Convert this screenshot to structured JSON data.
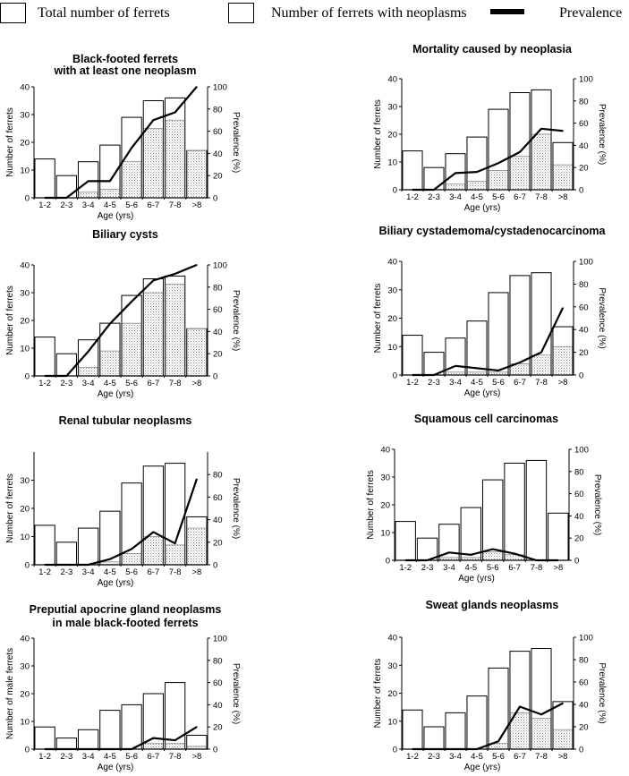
{
  "legend": {
    "total_label": "Total number of ferrets",
    "neoplasm_label": "Number of ferrets with neoplasms",
    "prevalence_label": "Prevalence"
  },
  "chart_data": [
    {
      "type": "bar",
      "title": [
        "Black-footed ferrets",
        "with at least one neoplasm"
      ],
      "xlabel": "Age (yrs)",
      "ylabel": "Number of ferrets",
      "y2label": "Prevalence (%)",
      "categories": [
        "1-2",
        "2-3",
        "3-4",
        "4-5",
        "5-6",
        "6-7",
        "7-8",
        ">8"
      ],
      "ylim": [
        0,
        40
      ],
      "yticks": [
        0,
        10,
        20,
        30,
        40
      ],
      "y2lim": [
        0,
        100
      ],
      "y2ticks": [
        0,
        20,
        40,
        60,
        80,
        100
      ],
      "series": [
        {
          "name": "Total number of ferrets",
          "values": [
            14,
            8,
            13,
            19,
            29,
            35,
            36,
            17
          ]
        },
        {
          "name": "Number of ferrets with neoplasms",
          "values": [
            0,
            0,
            2,
            3,
            13,
            25,
            28,
            17
          ]
        },
        {
          "name": "Prevalence",
          "values": [
            0,
            0,
            15,
            15,
            45,
            70,
            77,
            100
          ]
        }
      ]
    },
    {
      "type": "bar",
      "title": [
        "Mortality caused by neoplasia"
      ],
      "xlabel": "Age (yrs)",
      "ylabel": "Number of ferrets",
      "y2label": "Prevalence (%)",
      "categories": [
        "1-2",
        "2-3",
        "3-4",
        "4-5",
        "5-6",
        "6-7",
        "7-8",
        ">8"
      ],
      "ylim": [
        0,
        40
      ],
      "yticks": [
        0,
        10,
        20,
        30,
        40
      ],
      "y2lim": [
        0,
        100
      ],
      "y2ticks": [
        0,
        20,
        40,
        60,
        80,
        100
      ],
      "series": [
        {
          "name": "Total number of ferrets",
          "values": [
            14,
            8,
            13,
            19,
            29,
            35,
            36,
            17
          ]
        },
        {
          "name": "Number of ferrets with neoplasms",
          "values": [
            0,
            0,
            2,
            3,
            7,
            12,
            20,
            9
          ]
        },
        {
          "name": "Prevalence",
          "values": [
            0,
            0,
            15,
            16,
            24,
            34,
            55,
            53
          ]
        }
      ]
    },
    {
      "type": "bar",
      "title": [
        "Biliary cysts"
      ],
      "xlabel": "Age (yrs)",
      "ylabel": "Number of ferrets",
      "y2label": "Prevalence (%)",
      "categories": [
        "1-2",
        "2-3",
        "3-4",
        "4-5",
        "5-6",
        "6-7",
        "7-8",
        ">8"
      ],
      "ylim": [
        0,
        40
      ],
      "yticks": [
        0,
        10,
        20,
        30,
        40
      ],
      "y2lim": [
        0,
        100
      ],
      "y2ticks": [
        0,
        20,
        40,
        60,
        80,
        100
      ],
      "series": [
        {
          "name": "Total number of ferrets",
          "values": [
            14,
            8,
            13,
            19,
            29,
            35,
            36,
            17
          ]
        },
        {
          "name": "Number of ferrets with neoplasms",
          "values": [
            0,
            0,
            3,
            9,
            19,
            30,
            33,
            17
          ]
        },
        {
          "name": "Prevalence",
          "values": [
            0,
            0,
            22,
            47,
            67,
            86,
            92,
            100
          ]
        }
      ]
    },
    {
      "type": "bar",
      "title": [
        "Biliary cystademoma/cystadenocarcinoma"
      ],
      "xlabel": "Age (yrs)",
      "ylabel": "Number of ferrets",
      "y2label": "Prevalence (%)",
      "categories": [
        "1-2",
        "2-3",
        "3-4",
        "4-5",
        "5-6",
        "6-7",
        "7-8",
        ">8"
      ],
      "ylim": [
        0,
        40
      ],
      "yticks": [
        0,
        10,
        20,
        30,
        40
      ],
      "y2lim": [
        0,
        100
      ],
      "y2ticks": [
        0,
        20,
        40,
        60,
        80,
        100
      ],
      "series": [
        {
          "name": "Total number of ferrets",
          "values": [
            14,
            8,
            13,
            19,
            29,
            35,
            36,
            17
          ]
        },
        {
          "name": "Number of ferrets with neoplasms",
          "values": [
            0,
            0,
            1,
            1,
            1,
            4,
            7,
            10
          ]
        },
        {
          "name": "Prevalence",
          "values": [
            0,
            0,
            8,
            6,
            4,
            11,
            20,
            59
          ]
        }
      ]
    },
    {
      "type": "bar",
      "title": [
        "Renal tubular neoplasms"
      ],
      "xlabel": "Age (yrs)",
      "ylabel": "Number of ferrets",
      "y2label": "Prevalence (%)",
      "categories": [
        "1-2",
        "2-3",
        "3-4",
        "4-5",
        "5-6",
        "6-7",
        "7-8",
        ">8"
      ],
      "ylim": [
        0,
        40
      ],
      "yticks": [
        0,
        10,
        20,
        30
      ],
      "y2lim": [
        0,
        100
      ],
      "y2ticks": [
        0,
        20,
        40,
        60,
        80
      ],
      "series": [
        {
          "name": "Total number of ferrets",
          "values": [
            14,
            8,
            13,
            19,
            29,
            35,
            36,
            17
          ]
        },
        {
          "name": "Number of ferrets with neoplasms",
          "values": [
            0,
            0,
            0,
            1,
            4,
            10,
            7,
            13
          ]
        },
        {
          "name": "Prevalence",
          "values": [
            0,
            0,
            0,
            5,
            14,
            29,
            19,
            76
          ]
        }
      ]
    },
    {
      "type": "bar",
      "title": [
        "Squamous cell carcinomas"
      ],
      "xlabel": "Age (yrs)",
      "ylabel": "Number of ferrets",
      "y2label": "Prevalence (%)",
      "categories": [
        "1-2",
        "2-3",
        "3-4",
        "4-5",
        "5-6",
        "6-7",
        "7-8",
        ">8"
      ],
      "ylim": [
        0,
        40
      ],
      "yticks": [
        0,
        10,
        20,
        30,
        40
      ],
      "y2lim": [
        0,
        100
      ],
      "y2ticks": [
        0,
        20,
        40,
        60,
        80,
        100
      ],
      "series": [
        {
          "name": "Total number of ferrets",
          "values": [
            14,
            8,
            13,
            19,
            29,
            35,
            36,
            17
          ]
        },
        {
          "name": "Number of ferrets with neoplasms",
          "values": [
            0,
            0,
            1,
            1,
            3,
            2,
            0,
            0
          ]
        },
        {
          "name": "Prevalence",
          "values": [
            0,
            0,
            7,
            5,
            10,
            6,
            0,
            0
          ]
        }
      ]
    },
    {
      "type": "bar",
      "title": [
        "Preputial apocrine gland neoplasms",
        "in male black-footed ferrets"
      ],
      "xlabel": "Age (yrs)",
      "ylabel": "Number of male ferrets",
      "y2label": "Prevalence (%)",
      "categories": [
        "1-2",
        "2-3",
        "3-4",
        "4-5",
        "5-6",
        "6-7",
        "7-8",
        ">8"
      ],
      "ylim": [
        0,
        40
      ],
      "yticks": [
        0,
        10,
        20,
        30,
        40
      ],
      "y2lim": [
        0,
        100
      ],
      "y2ticks": [
        0,
        20,
        40,
        60,
        80,
        100
      ],
      "series": [
        {
          "name": "Total number of ferrets",
          "values": [
            8,
            4,
            7,
            14,
            16,
            20,
            24,
            5
          ]
        },
        {
          "name": "Number of ferrets with neoplasms",
          "values": [
            0,
            0,
            0,
            0,
            0,
            2,
            2,
            1
          ]
        },
        {
          "name": "Prevalence",
          "values": [
            0,
            0,
            0,
            0,
            0,
            10,
            8,
            20
          ]
        }
      ]
    },
    {
      "type": "bar",
      "title": [
        "Sweat glands neoplasms"
      ],
      "xlabel": "Age (yrs)",
      "ylabel": "Number of ferrets",
      "y2label": "Prevalence (%)",
      "categories": [
        "1-2",
        "2-3",
        "3-4",
        "4-5",
        "5-6",
        "6-7",
        "7-8",
        ">8"
      ],
      "ylim": [
        0,
        40
      ],
      "yticks": [
        0,
        10,
        20,
        30,
        40
      ],
      "y2lim": [
        0,
        100
      ],
      "y2ticks": [
        0,
        20,
        40,
        60,
        80,
        100
      ],
      "series": [
        {
          "name": "Total number of ferrets",
          "values": [
            14,
            8,
            13,
            19,
            29,
            35,
            36,
            17
          ]
        },
        {
          "name": "Number of ferrets with neoplasms",
          "values": [
            0,
            0,
            0,
            0,
            2,
            13,
            11,
            7
          ]
        },
        {
          "name": "Prevalence",
          "values": [
            0,
            0,
            0,
            0,
            7,
            38,
            31,
            41
          ]
        }
      ]
    }
  ]
}
